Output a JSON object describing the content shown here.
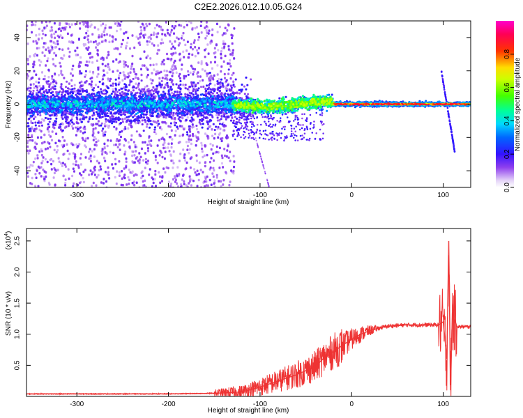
{
  "title": "C2E2.2026.012.10.05.G24",
  "chart_data": [
    {
      "type": "heatmap",
      "name": "spectrogram",
      "xlabel": "Height of straight line (km)",
      "ylabel": "Frequency (Hz)",
      "xlim": [
        -355,
        130
      ],
      "ylim": [
        -50,
        50
      ],
      "xticks": [
        -300,
        -200,
        -100,
        0,
        100
      ],
      "xtick_labels": [
        "-300",
        "-200",
        "-100",
        "0",
        "100"
      ],
      "yticks": [
        -40,
        -20,
        0,
        20,
        40
      ],
      "ytick_labels": [
        "-40",
        "-20",
        "0",
        "20",
        "40"
      ],
      "colorbar": {
        "label": "Normalized spectral amplitude",
        "range": [
          0,
          1
        ],
        "ticks": [
          0.0,
          0.2,
          0.4,
          0.6,
          0.8
        ],
        "tick_labels": [
          "0.0",
          "0.2",
          "0.4",
          "0.6",
          "0.8"
        ],
        "colormap": "violet-blue-cyan-green-yellow-red-magenta"
      },
      "features": [
        {
          "label": "noisy scatter region",
          "x_range": [
            -355,
            -130
          ],
          "freq_spread_hz": 50
        },
        {
          "label": "signal trace near 0 Hz",
          "x_range": [
            -130,
            130
          ],
          "freq_hz": 0
        },
        {
          "label": "slanted artifact",
          "x_range": [
            98,
            113
          ],
          "freq_range_hz": [
            20,
            -30
          ]
        }
      ]
    },
    {
      "type": "line",
      "name": "snr",
      "xlabel": "Height of straight line (km)",
      "ylabel": "SNR (10 * v/v)",
      "scale_label": "(x10",
      "scale_exponent": "4",
      "xlim": [
        -355,
        130
      ],
      "ylim": [
        0,
        2.7
      ],
      "xticks": [
        -300,
        -200,
        -100,
        0,
        100
      ],
      "xtick_labels": [
        "-300",
        "-200",
        "-100",
        "0",
        "100"
      ],
      "yticks": [
        0.5,
        1.0,
        1.5,
        2.0,
        2.5
      ],
      "ytick_labels": [
        "0.5",
        "1.0",
        "1.5",
        "2.0",
        "2.5"
      ],
      "color": "#ee3333",
      "x": [
        -355,
        -300,
        -250,
        -200,
        -150,
        -120,
        -100,
        -80,
        -60,
        -40,
        -30,
        -20,
        -10,
        0,
        10,
        20,
        30,
        40,
        60,
        80,
        95,
        100,
        104,
        106,
        108,
        110,
        115,
        130
      ],
      "y": [
        0.04,
        0.04,
        0.04,
        0.04,
        0.05,
        0.07,
        0.15,
        0.25,
        0.35,
        0.48,
        0.62,
        0.72,
        0.82,
        0.92,
        1.0,
        1.06,
        1.1,
        1.13,
        1.15,
        1.15,
        1.15,
        1.2,
        0.6,
        2.5,
        0.1,
        1.35,
        1.12,
        1.12
      ]
    }
  ]
}
